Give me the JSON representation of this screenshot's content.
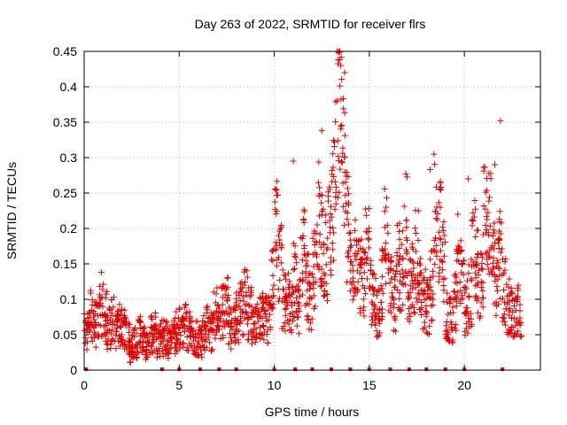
{
  "chart_data": {
    "type": "scatter",
    "title": "Day 263 of 2022, SRMTID for receiver flrs",
    "xlabel": "GPS time / hours",
    "ylabel": "SRMTID / TECUs",
    "xlim": [
      0,
      24
    ],
    "ylim": [
      0,
      0.45
    ],
    "xticks": [
      0,
      5,
      10,
      15,
      20
    ],
    "xtick_labels": [
      "0",
      "5",
      "10",
      "15",
      "20"
    ],
    "yticks": [
      0,
      0.05,
      0.1,
      0.15,
      0.2,
      0.25,
      0.3,
      0.35,
      0.4,
      0.45
    ],
    "ytick_labels": [
      "0",
      "0.05",
      "0.1",
      "0.15",
      "0.2",
      "0.25",
      "0.3",
      "0.35",
      "0.4",
      "0.45"
    ],
    "grid": true,
    "marker": "+",
    "color": "#e00000",
    "series": [
      {
        "name": "SRMTID",
        "x": [
          0.1,
          0.3,
          0.5,
          0.7,
          0.9,
          1.1,
          1.3,
          1.5,
          1.7,
          1.9,
          2.1,
          2.3,
          2.5,
          2.7,
          2.9,
          3.1,
          3.3,
          3.5,
          3.7,
          3.9,
          4.1,
          4.3,
          4.5,
          4.7,
          4.9,
          5.1,
          5.3,
          5.5,
          5.7,
          5.9,
          6.1,
          6.3,
          6.5,
          6.7,
          6.9,
          7.1,
          7.3,
          7.5,
          7.7,
          7.9,
          8.1,
          8.3,
          8.5,
          8.7,
          8.9,
          9.1,
          9.3,
          9.5,
          9.7,
          9.9,
          10.1,
          10.3,
          10.5,
          10.7,
          10.9,
          11.1,
          11.3,
          11.5,
          11.7,
          11.9,
          12.1,
          12.3,
          12.5,
          12.7,
          12.9,
          13.1,
          13.3,
          13.5,
          13.7,
          13.9,
          14.1,
          14.3,
          14.5,
          14.7,
          14.9,
          15.1,
          15.3,
          15.5,
          15.7,
          15.9,
          16.1,
          16.3,
          16.5,
          16.7,
          16.9,
          17.1,
          17.3,
          17.5,
          17.7,
          17.9,
          18.1,
          18.3,
          18.5,
          18.7,
          18.9,
          19.1,
          19.3,
          19.5,
          19.7,
          19.9,
          20.1,
          20.3,
          20.5,
          20.7,
          20.9,
          21.1,
          21.3,
          21.5,
          21.7,
          21.9,
          22.1,
          22.3,
          22.5,
          22.7,
          22.9
        ],
        "y": [
          0.055,
          0.08,
          0.07,
          0.065,
          0.085,
          0.075,
          0.06,
          0.07,
          0.055,
          0.065,
          0.06,
          0.045,
          0.03,
          0.04,
          0.05,
          0.045,
          0.035,
          0.05,
          0.055,
          0.04,
          0.045,
          0.05,
          0.035,
          0.05,
          0.055,
          0.06,
          0.07,
          0.055,
          0.05,
          0.045,
          0.04,
          0.05,
          0.06,
          0.055,
          0.08,
          0.07,
          0.085,
          0.09,
          0.06,
          0.065,
          0.075,
          0.09,
          0.1,
          0.08,
          0.07,
          0.065,
          0.075,
          0.08,
          0.07,
          0.12,
          0.2,
          0.15,
          0.1,
          0.095,
          0.085,
          0.13,
          0.09,
          0.17,
          0.12,
          0.1,
          0.14,
          0.22,
          0.18,
          0.16,
          0.2,
          0.24,
          0.33,
          0.4,
          0.3,
          0.2,
          0.14,
          0.15,
          0.13,
          0.12,
          0.17,
          0.11,
          0.1,
          0.08,
          0.12,
          0.19,
          0.13,
          0.1,
          0.15,
          0.14,
          0.2,
          0.12,
          0.13,
          0.16,
          0.11,
          0.1,
          0.09,
          0.12,
          0.24,
          0.2,
          0.15,
          0.08,
          0.07,
          0.1,
          0.16,
          0.13,
          0.09,
          0.11,
          0.17,
          0.14,
          0.12,
          0.22,
          0.2,
          0.15,
          0.13,
          0.16,
          0.11,
          0.09,
          0.08,
          0.07,
          0.085
        ],
        "highlights": [
          {
            "x": 0.9,
            "y": 0.138
          },
          {
            "x": 11.0,
            "y": 0.295
          },
          {
            "x": 12.5,
            "y": 0.338
          },
          {
            "x": 13.5,
            "y": 0.43
          },
          {
            "x": 13.7,
            "y": 0.42
          },
          {
            "x": 18.2,
            "y": 0.283
          },
          {
            "x": 20.2,
            "y": 0.27
          },
          {
            "x": 21.6,
            "y": 0.29
          },
          {
            "x": 21.9,
            "y": 0.352
          }
        ]
      }
    ],
    "bottom_markers_x": [
      0.1,
      4.1,
      5.0,
      6.1,
      7.1,
      8.0,
      10.0,
      11.1,
      12.0,
      13.0,
      14.0,
      15.0,
      16.1,
      17.1,
      18.0,
      19.0,
      20.0,
      22.0
    ]
  }
}
